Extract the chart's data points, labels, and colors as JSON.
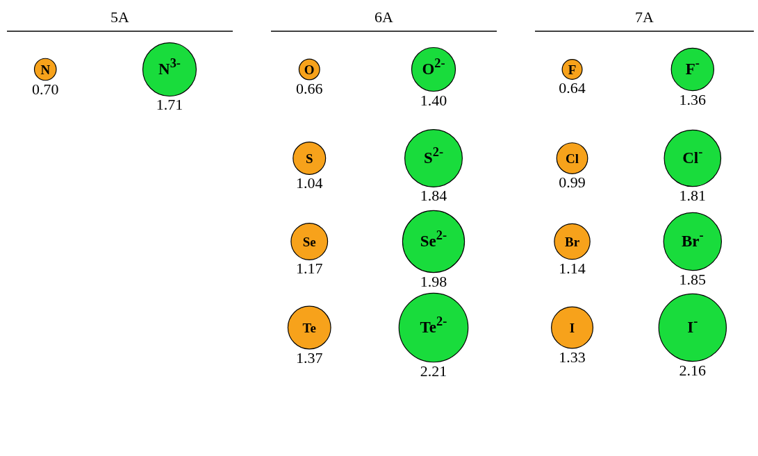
{
  "chart_data": [
    {
      "type": "other",
      "title": "5A",
      "categories": [
        "N",
        "N$^{3-}$"
      ],
      "values": [
        0.7,
        1.71
      ],
      "value_labels": [
        "0.70",
        "1.71"
      ],
      "colors": [
        "#f7a21b",
        "#19dc3c"
      ]
    },
    {
      "type": "other",
      "title": "6A",
      "categories": [
        "O",
        "O$^{2-}$",
        "S",
        "S$^{2-}$",
        "Se",
        "Se$^{2-}$",
        "Te",
        "Te$^{2-}$"
      ],
      "values": [
        0.66,
        1.4,
        1.04,
        1.84,
        1.17,
        1.98,
        1.37,
        2.21
      ],
      "value_labels": [
        "0.66",
        "1.40",
        "1.04",
        "1.84",
        "1.17",
        "1.98",
        "1.37",
        "2.21"
      ],
      "colors": [
        "#f7a21b",
        "#19dc3c",
        "#f7a21b",
        "#19dc3c",
        "#f7a21b",
        "#19dc3c",
        "#f7a21b",
        "#19dc3c"
      ]
    },
    {
      "type": "other",
      "title": "7A",
      "categories": [
        "F",
        "F$^{-}$",
        "Cl",
        "Cl$^{-}$",
        "Br",
        "Br$^{-}$",
        "I",
        "I$^{-}$"
      ],
      "values": [
        0.64,
        1.36,
        0.99,
        1.81,
        1.14,
        1.85,
        1.33,
        2.16
      ],
      "value_labels": [
        "0.64",
        "1.36",
        "0.99",
        "1.81",
        "1.14",
        "1.85",
        "1.33",
        "2.16"
      ],
      "colors": [
        "#f7a21b",
        "#19dc3c",
        "#f7a21b",
        "#19dc3c",
        "#f7a21b",
        "#19dc3c",
        "#f7a21b",
        "#19dc3c"
      ]
    }
  ]
}
